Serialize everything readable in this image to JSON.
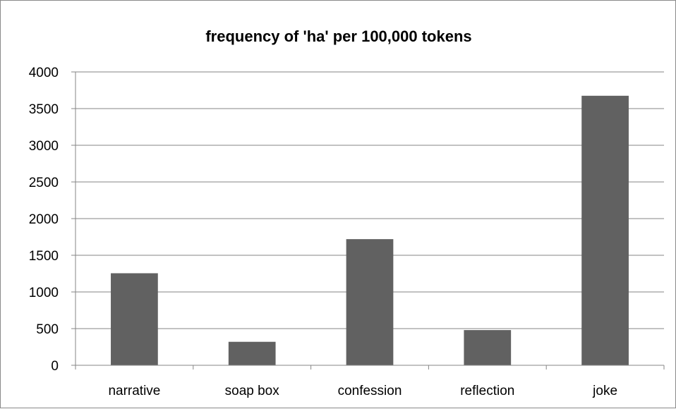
{
  "chart_data": {
    "type": "bar",
    "title": "frequency of 'ha' per 100,000 tokens",
    "xlabel": "",
    "ylabel": "",
    "categories": [
      "narrative",
      "soap box",
      "confession",
      "reflection",
      "joke"
    ],
    "values": [
      1255,
      320,
      1720,
      480,
      3675
    ],
    "ylim": [
      0,
      4000
    ],
    "yticks": [
      0,
      500,
      1000,
      1500,
      2000,
      2500,
      3000,
      3500,
      4000
    ],
    "grid": true,
    "legend": "none",
    "colors": {
      "bar": "#616161",
      "grid": "#868686",
      "axis": "#868686"
    }
  }
}
